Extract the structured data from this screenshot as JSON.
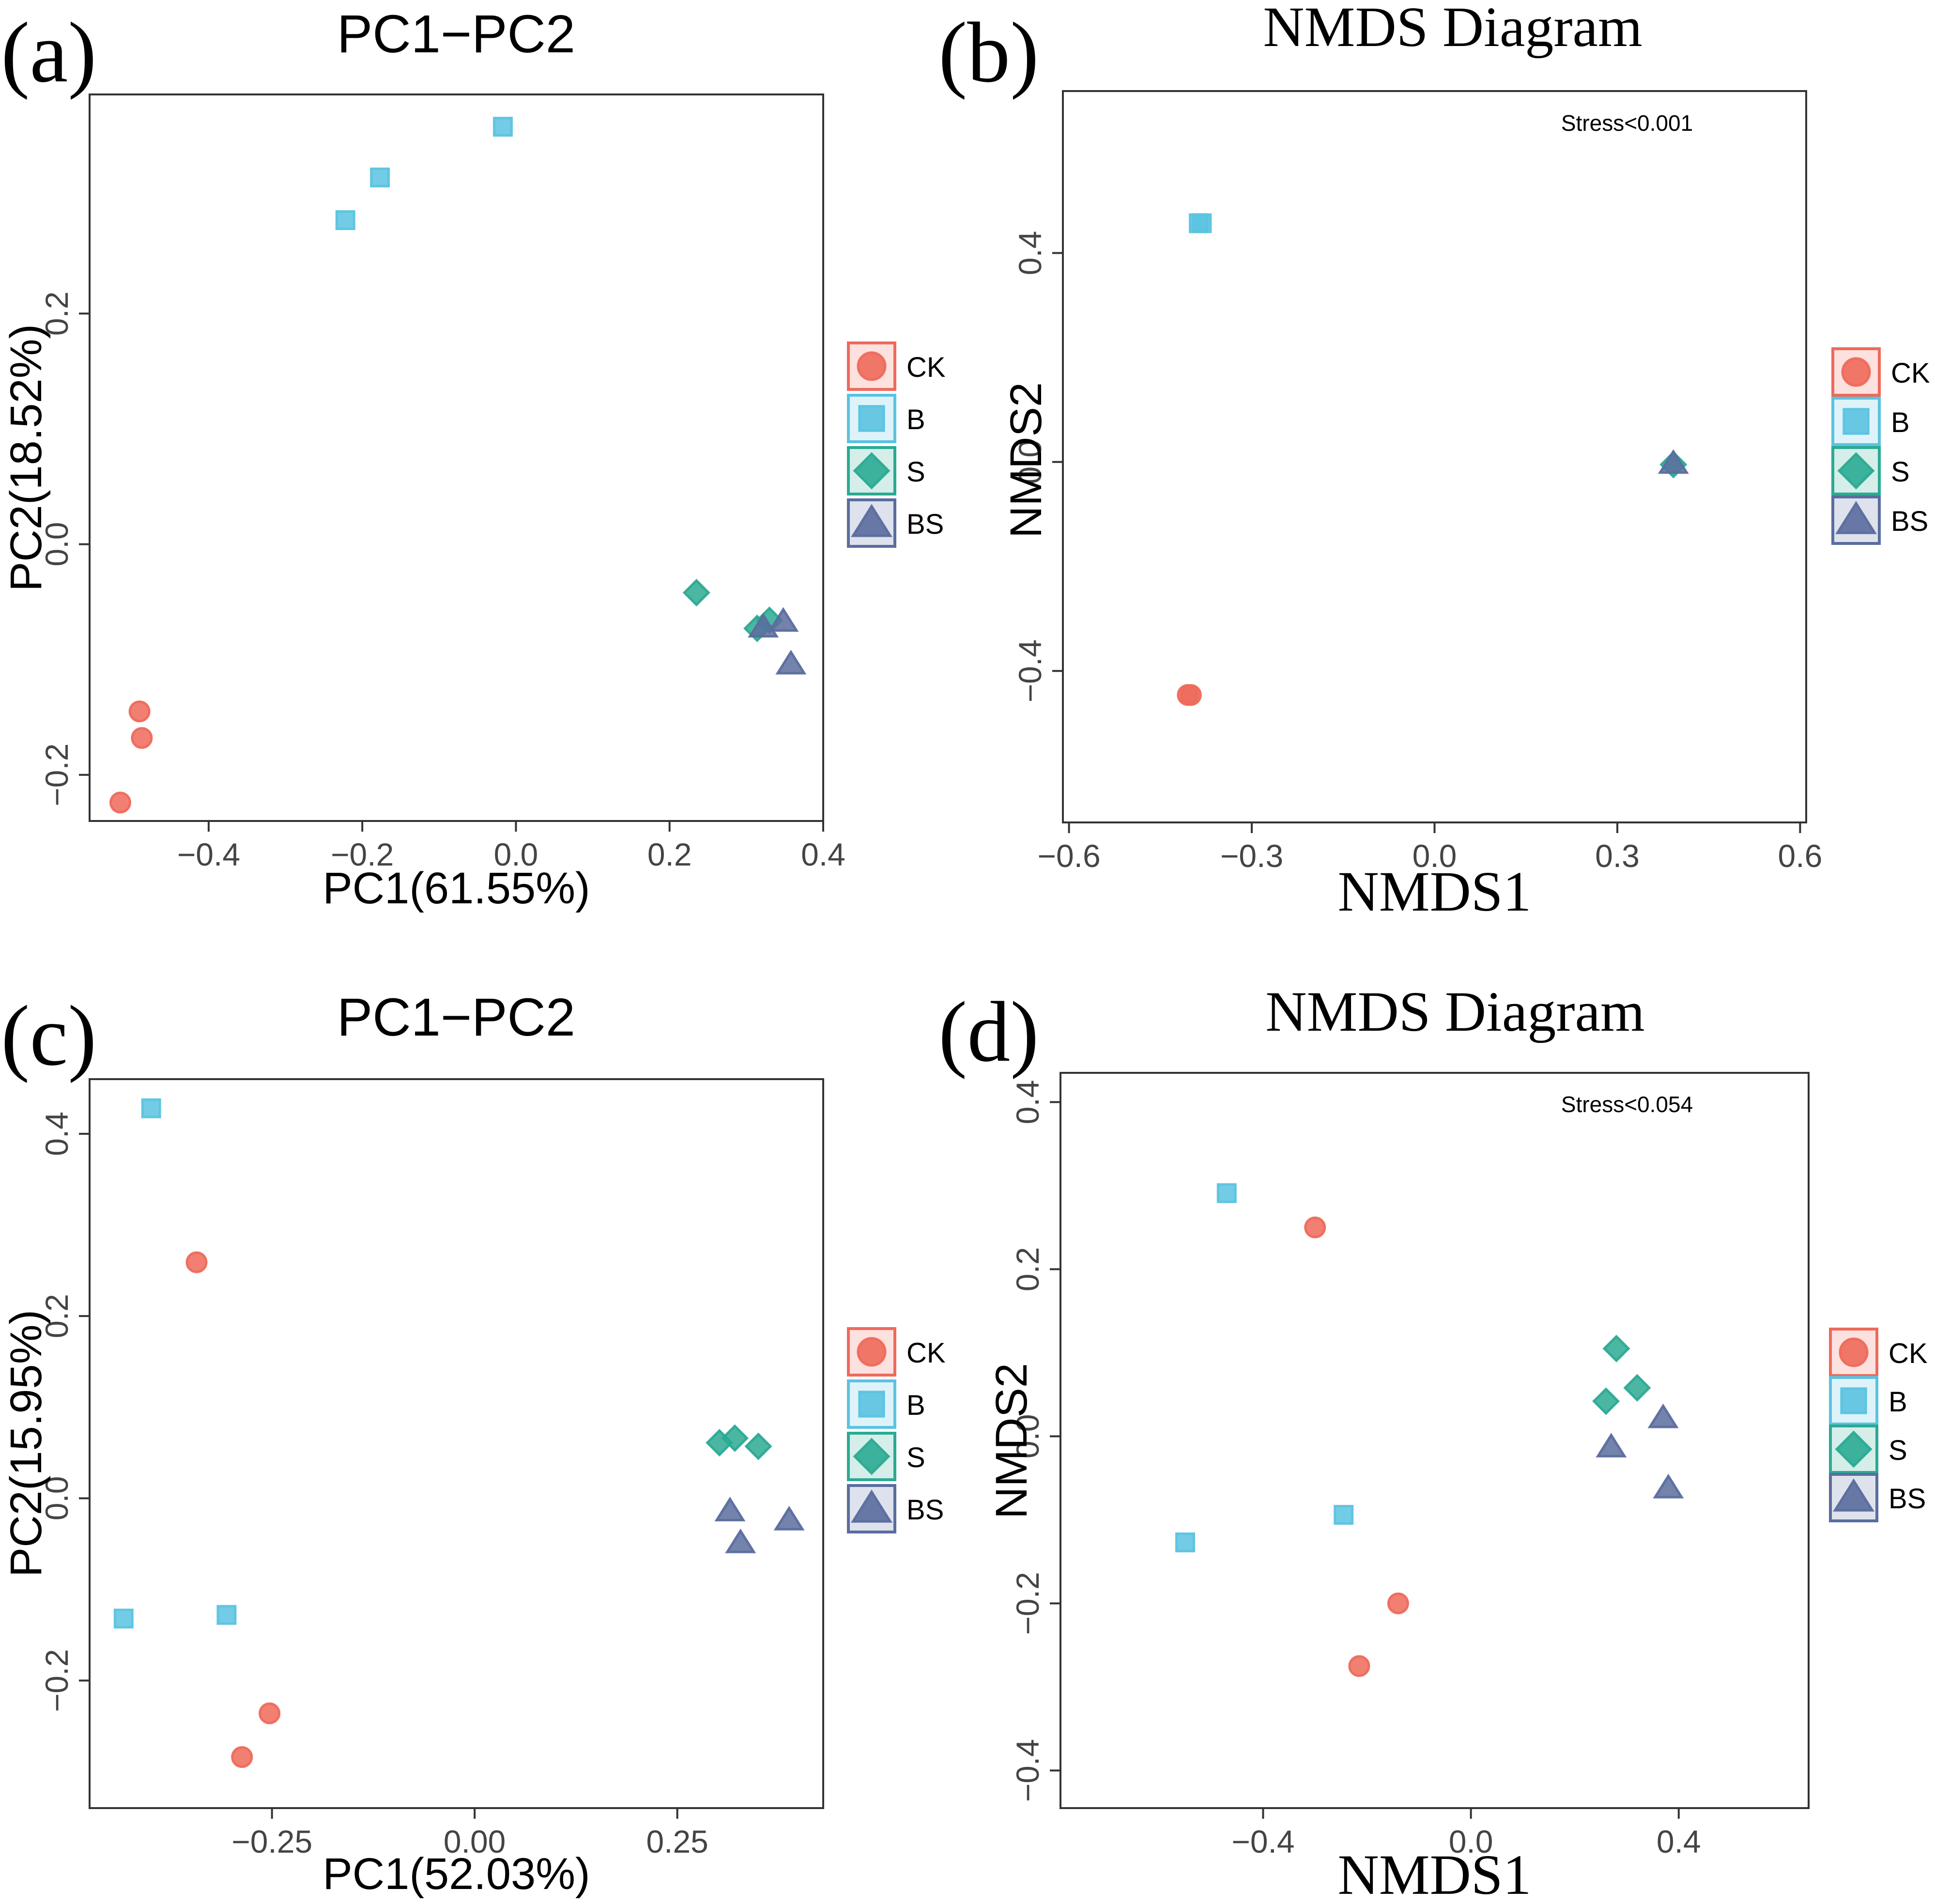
{
  "colors": {
    "CK": "#EE6A5B",
    "B": "#5BC3E0",
    "S": "#2BAA93",
    "BS": "#5B6D9E",
    "axis": "#333333",
    "tick_label": "#444444"
  },
  "legend": [
    {
      "key": "CK",
      "label": "CK",
      "shape": "circle"
    },
    {
      "key": "B",
      "label": "B",
      "shape": "square"
    },
    {
      "key": "S",
      "label": "S",
      "shape": "diamond"
    },
    {
      "key": "BS",
      "label": "BS",
      "shape": "triangle"
    }
  ],
  "chart_data": [
    {
      "type": "scatter",
      "panel_label": "(a)",
      "title": "PC1−PC2",
      "xlabel": "PC1(61.55%)",
      "ylabel": "PC2(18.52%)",
      "stress": "",
      "xlim": [
        -0.555,
        0.4
      ],
      "ylim": [
        -0.24,
        0.39
      ],
      "xticks": [
        -0.4,
        -0.2,
        0.0,
        0.2,
        0.4
      ],
      "xtick_labels": [
        "−0.4",
        "−0.2",
        "0.0",
        "0.2",
        "0.4"
      ],
      "yticks": [
        -0.2,
        0.0,
        0.2
      ],
      "ytick_labels": [
        "−0.2",
        "0.0",
        "0.2"
      ],
      "series": [
        {
          "name": "CK",
          "points": [
            [
              -0.49,
              -0.145
            ],
            [
              -0.487,
              -0.168
            ],
            [
              -0.515,
              -0.224
            ]
          ]
        },
        {
          "name": "B",
          "points": [
            [
              -0.222,
              0.281
            ],
            [
              -0.177,
              0.318
            ],
            [
              -0.017,
              0.362
            ]
          ]
        },
        {
          "name": "S",
          "points": [
            [
              0.235,
              -0.042
            ],
            [
              0.314,
              -0.073
            ],
            [
              0.33,
              -0.066
            ]
          ]
        },
        {
          "name": "BS",
          "points": [
            [
              0.348,
              -0.067
            ],
            [
              0.358,
              -0.104
            ],
            [
              0.322,
              -0.072
            ]
          ]
        }
      ]
    },
    {
      "type": "scatter",
      "panel_label": "(b)",
      "title": "NMDS Diagram",
      "xlabel": "NMDS1",
      "ylabel": "NMDS2",
      "stress": "Stress<0.001",
      "xlim": [
        -0.61,
        0.61
      ],
      "ylim": [
        -0.69,
        0.71
      ],
      "xticks": [
        -0.6,
        -0.3,
        0.0,
        0.3,
        0.6
      ],
      "xtick_labels": [
        "−0.6",
        "−0.3",
        "0.0",
        "0.3",
        "0.6"
      ],
      "yticks": [
        -0.4,
        0.0,
        0.4
      ],
      "ytick_labels": [
        "−0.4",
        "0.0",
        "0.4"
      ],
      "series": [
        {
          "name": "CK",
          "points": [
            [
              -0.405,
              -0.446
            ],
            [
              -0.4,
              -0.446
            ]
          ]
        },
        {
          "name": "B",
          "points": [
            [
              -0.387,
              0.457
            ],
            [
              -0.382,
              0.457
            ]
          ]
        },
        {
          "name": "S",
          "points": [
            [
              0.392,
              -0.005
            ]
          ]
        },
        {
          "name": "BS",
          "points": [
            [
              0.392,
              -0.003
            ]
          ]
        }
      ]
    },
    {
      "type": "scatter",
      "panel_label": "(c)",
      "title": "PC1−PC2",
      "xlabel": "PC1(52.03%)",
      "ylabel": "PC2(15.95%)",
      "stress": "",
      "xlim": [
        -0.475,
        0.43
      ],
      "ylim": [
        -0.34,
        0.46
      ],
      "xticks": [
        -0.25,
        0.0,
        0.25
      ],
      "xtick_labels": [
        "−0.25",
        "0.00",
        "0.25"
      ],
      "yticks": [
        -0.2,
        0.0,
        0.2,
        0.4
      ],
      "ytick_labels": [
        "−0.2",
        "0.0",
        "0.2",
        "0.4"
      ],
      "series": [
        {
          "name": "CK",
          "points": [
            [
              -0.343,
              0.259
            ],
            [
              -0.253,
              -0.236
            ],
            [
              -0.287,
              -0.284
            ]
          ]
        },
        {
          "name": "B",
          "points": [
            [
              -0.399,
              0.428
            ],
            [
              -0.433,
              -0.132
            ],
            [
              -0.306,
              -0.128
            ]
          ]
        },
        {
          "name": "S",
          "points": [
            [
              0.302,
              0.061
            ],
            [
              0.321,
              0.066
            ],
            [
              0.35,
              0.057
            ]
          ]
        },
        {
          "name": "BS",
          "points": [
            [
              0.315,
              -0.014
            ],
            [
              0.328,
              -0.049
            ],
            [
              0.388,
              -0.024
            ]
          ]
        }
      ]
    },
    {
      "type": "scatter",
      "panel_label": "(d)",
      "title": "NMDS Diagram",
      "xlabel": "NMDS1",
      "ylabel": "NMDS2",
      "stress": "Stress<0.054",
      "xlim": [
        -0.79,
        0.65
      ],
      "ylim": [
        -0.445,
        0.435
      ],
      "xticks": [
        -0.4,
        0.0,
        0.4
      ],
      "xtick_labels": [
        "−0.4",
        "0.0",
        "0.4"
      ],
      "yticks": [
        -0.4,
        -0.2,
        0.0,
        0.2,
        0.4
      ],
      "ytick_labels": [
        "−0.4",
        "−0.2",
        "0.0",
        "0.2",
        "0.4"
      ],
      "series": [
        {
          "name": "CK",
          "points": [
            [
              -0.3,
              0.25
            ],
            [
              -0.14,
              -0.2
            ],
            [
              -0.215,
              -0.275
            ]
          ]
        },
        {
          "name": "B",
          "points": [
            [
              -0.47,
              0.291
            ],
            [
              -0.55,
              -0.127
            ],
            [
              -0.245,
              -0.094
            ]
          ]
        },
        {
          "name": "S",
          "points": [
            [
              0.28,
              0.105
            ],
            [
              0.26,
              0.042
            ],
            [
              0.32,
              0.058
            ]
          ]
        },
        {
          "name": "BS",
          "points": [
            [
              0.27,
              -0.013
            ],
            [
              0.37,
              0.022
            ],
            [
              0.38,
              -0.062
            ]
          ]
        }
      ]
    }
  ]
}
